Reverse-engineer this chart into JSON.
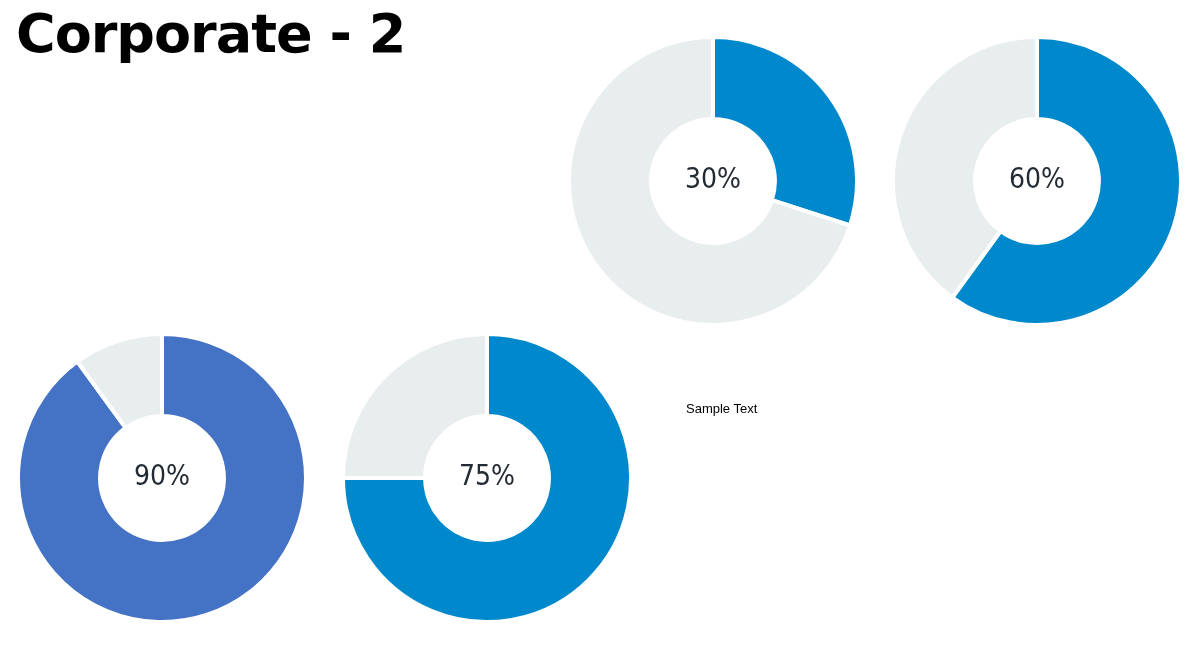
{
  "chart_data": [
    {
      "type": "other",
      "title": "Corporate - 2"
    },
    {
      "type": "donut",
      "categories": [
        null,
        null
      ],
      "values": [
        30,
        70
      ],
      "colors": [
        "#0088cc",
        "#e8eded"
      ],
      "annotations": [
        "30%"
      ]
    },
    {
      "type": "donut",
      "categories": [
        null,
        null
      ],
      "values": [
        60,
        40
      ],
      "colors": [
        "#0088cc",
        "#e8eded"
      ],
      "annotations": [
        "60%"
      ]
    },
    {
      "type": "donut",
      "categories": [
        null,
        null
      ],
      "values": [
        90,
        10
      ],
      "colors": [
        "#4472c4",
        "#e8eded"
      ],
      "annotations": [
        "90%"
      ]
    },
    {
      "type": "donut",
      "categories": [
        null,
        null
      ],
      "values": [
        75,
        25
      ],
      "colors": [
        "#0088cc",
        "#e8eded"
      ],
      "annotations": [
        "75%"
      ]
    },
    {
      "type": "other",
      "annotations": [
        "Sample Text"
      ]
    }
  ]
}
